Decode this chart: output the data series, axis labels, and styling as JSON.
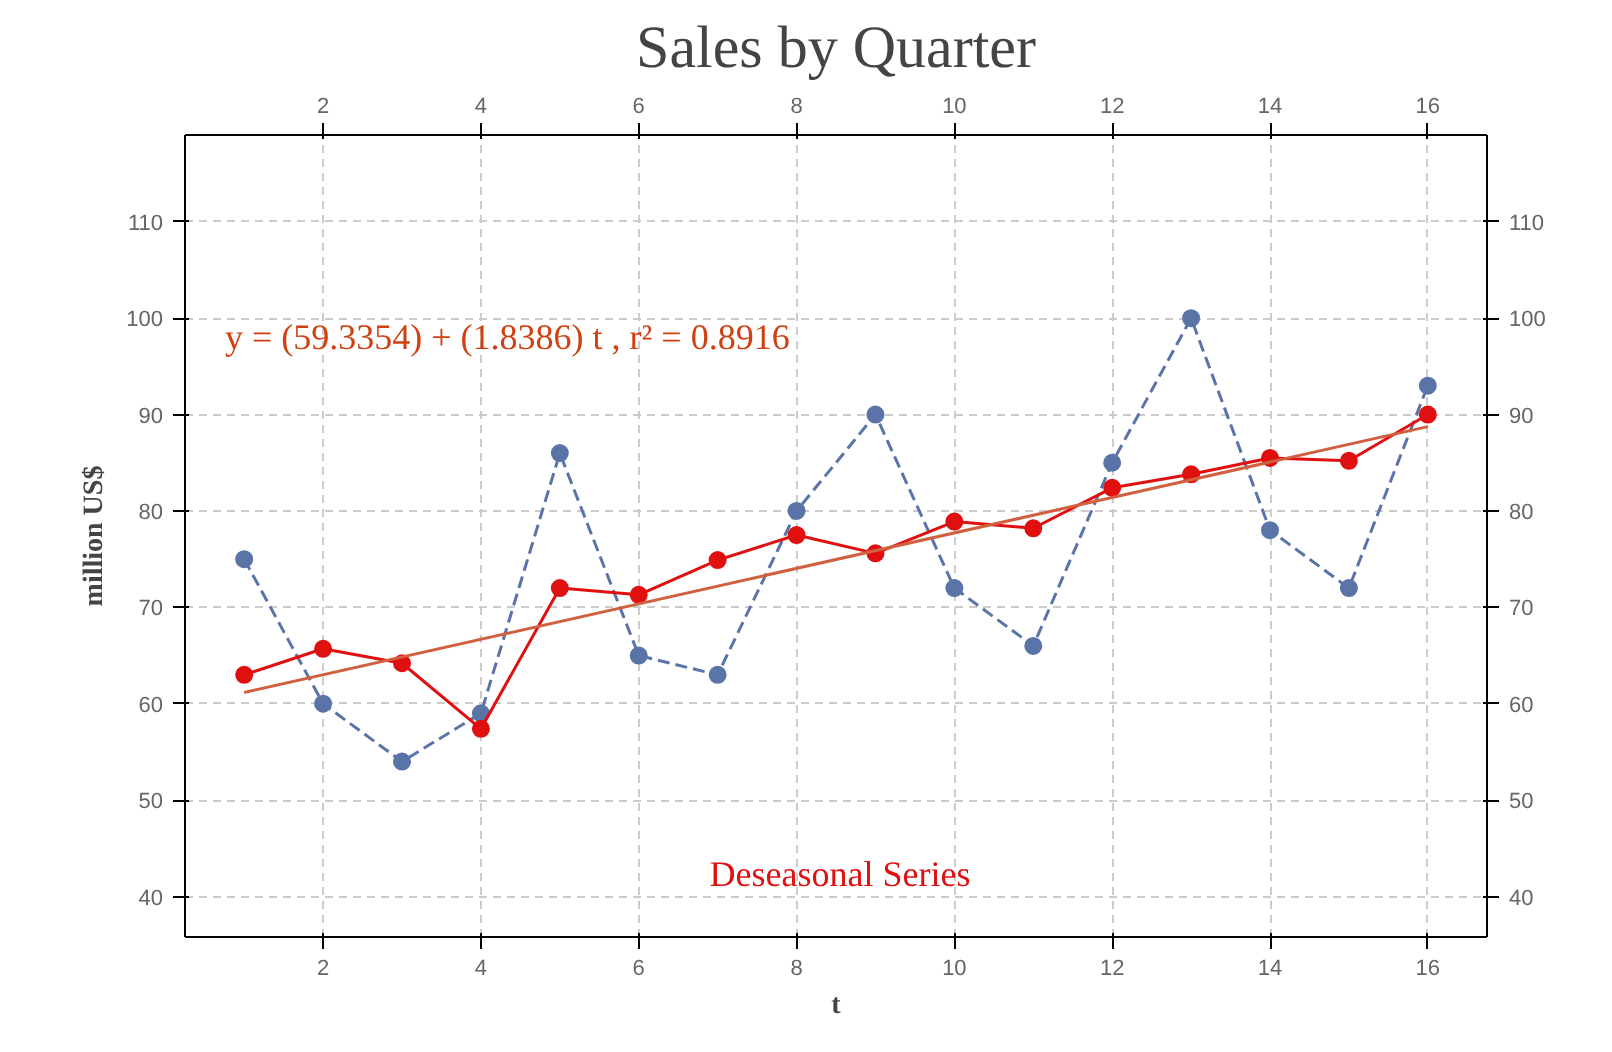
{
  "chart_data": {
    "type": "line",
    "title": "Sales by Quarter",
    "xlabel": "t",
    "ylabel": "million US$",
    "annotations": [
      "y = (59.3354) + (1.8386) t , r² = 0.8916"
    ],
    "x": [
      1,
      2,
      3,
      4,
      5,
      6,
      7,
      8,
      9,
      10,
      11,
      12,
      13,
      14,
      15,
      16
    ],
    "series": [
      {
        "color": "#5a74a8",
        "line_style": "dashed",
        "marker": "circle",
        "values": [
          75,
          60,
          54,
          59,
          86,
          65,
          63,
          80,
          90,
          72,
          66,
          85,
          100,
          78,
          72,
          93
        ]
      },
      {
        "name": "Deseasonal Series",
        "color": "#e01010",
        "line_style": "solid",
        "marker": "circle",
        "values": [
          63,
          65.7,
          64.2,
          57.4,
          72,
          71.3,
          74.9,
          77.5,
          75.6,
          78.9,
          78.2,
          82.4,
          83.8,
          85.5,
          85.2,
          90
        ]
      },
      {
        "type": "line",
        "color": "#d06040",
        "line_style": "solid",
        "marker": "none",
        "x": [
          1,
          16
        ],
        "values": [
          61.17,
          88.75
        ]
      }
    ],
    "xlim": [
      0.25,
      16.75
    ],
    "xticks": [
      2,
      4,
      6,
      8,
      10,
      12,
      14,
      16
    ],
    "x2lim": [
      0.25,
      16.75
    ],
    "x2ticks": [
      2,
      4,
      6,
      8,
      10,
      12,
      14,
      16
    ],
    "ylim": [
      35.8,
      119
    ],
    "yticks": [
      40,
      50,
      60,
      70,
      80,
      90,
      100,
      110
    ],
    "y2lim": [
      35.8,
      119
    ],
    "y2ticks": [
      40,
      50,
      60,
      70,
      80,
      90,
      100,
      110
    ],
    "grid": true,
    "legend": "bottom"
  }
}
